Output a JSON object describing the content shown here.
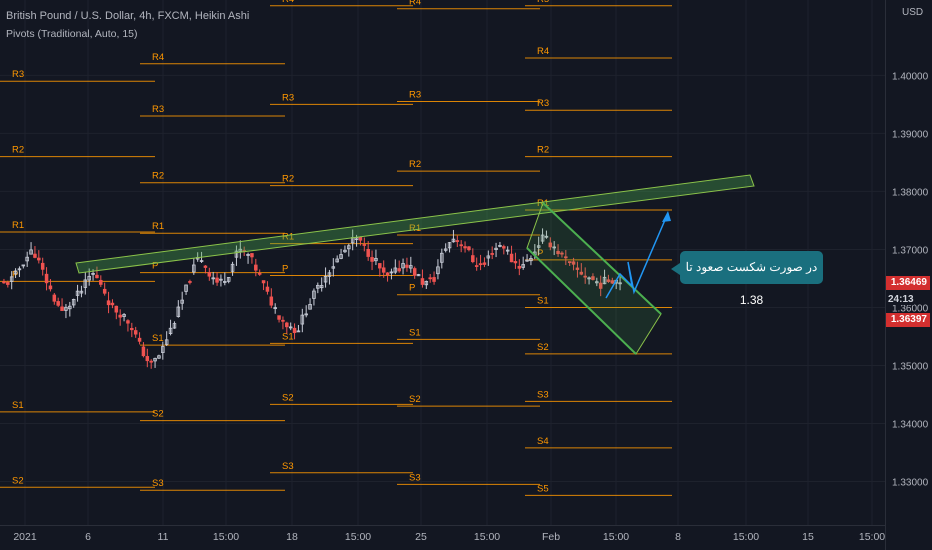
{
  "header": {
    "title": "British Pound / U.S. Dollar, 4h, FXCM, Heikin Ashi",
    "indicator": "Pivots (Traditional, Auto, 15)"
  },
  "currency_label": "USD",
  "annotation": "در صورت شکست صعود تا 1.38",
  "price_badges": {
    "current": "1.36469",
    "countdown": "24:13",
    "other": "1.36397"
  },
  "colors": {
    "background": "#131722",
    "grid": "#1e222d",
    "pivot": "#ff9800",
    "up_candle": "#c9cdd8",
    "down_candle": "#ef5350",
    "channel_fill": "#4caf50",
    "channel_stroke": "#8bc34a",
    "arrow": "#2196f3",
    "callout": "#1a6f7e",
    "badge_red": "#d32f2f",
    "badge_dark": "#2a2e39"
  },
  "chart_data": {
    "type": "candlestick",
    "symbol": "GBPUSD",
    "timeframe": "4h",
    "ylim": [
      1.3225,
      1.413
    ],
    "y_ticks": [
      "1.40000",
      "1.39000",
      "1.38000",
      "1.37000",
      "1.36000",
      "1.35000",
      "1.34000",
      "1.33000"
    ],
    "x_ticks": [
      "2021",
      "6",
      "11",
      "15:00",
      "18",
      "15:00",
      "25",
      "15:00",
      "Feb",
      "15:00",
      "8",
      "15:00",
      "15",
      "15:00"
    ],
    "pivot_periods": [
      {
        "levels": {
          "R3": 1.399,
          "R2": 1.386,
          "R1": 1.373,
          "P": 1.3645,
          "S1": 1.342,
          "S2": 1.329
        }
      },
      {
        "levels": {
          "R4": 1.402,
          "R3": 1.393,
          "R2": 1.3815,
          "R1": 1.3728,
          "P": 1.366,
          "S1": 1.3535,
          "S2": 1.3405,
          "S3": 1.3285
        }
      },
      {
        "levels": {
          "R4": 1.412,
          "R3": 1.395,
          "R2": 1.381,
          "R1": 1.371,
          "P": 1.3655,
          "S1": 1.3538,
          "S2": 1.3433,
          "S3": 1.3315
        }
      },
      {
        "levels": {
          "R4": 1.4115,
          "R3": 1.3955,
          "R2": 1.3835,
          "R1": 1.3725,
          "P": 1.3622,
          "S1": 1.3545,
          "S2": 1.343,
          "S3": 1.3295
        }
      },
      {
        "levels": {
          "R5": 1.412,
          "R4": 1.403,
          "R3": 1.394,
          "R2": 1.386,
          "R1": 1.3768,
          "P": 1.3682,
          "S1": 1.36,
          "S2": 1.352,
          "S3": 1.3438,
          "S4": 1.3358,
          "S5": 1.3276
        }
      }
    ],
    "series_path": [
      1.364,
      1.365,
      1.368,
      1.37,
      1.366,
      1.362,
      1.359,
      1.361,
      1.363,
      1.366,
      1.364,
      1.36,
      1.359,
      1.357,
      1.353,
      1.35,
      1.352,
      1.356,
      1.36,
      1.365,
      1.369,
      1.366,
      1.364,
      1.366,
      1.37,
      1.369,
      1.366,
      1.362,
      1.359,
      1.357,
      1.356,
      1.36,
      1.363,
      1.366,
      1.368,
      1.37,
      1.372,
      1.37,
      1.368,
      1.365,
      1.366,
      1.368,
      1.366,
      1.364,
      1.365,
      1.37,
      1.372,
      1.371,
      1.368,
      1.367,
      1.37,
      1.371,
      1.368,
      1.367,
      1.369,
      1.372,
      1.371,
      1.369,
      1.367,
      1.366,
      1.365,
      1.364,
      1.365,
      1.3647
    ]
  }
}
